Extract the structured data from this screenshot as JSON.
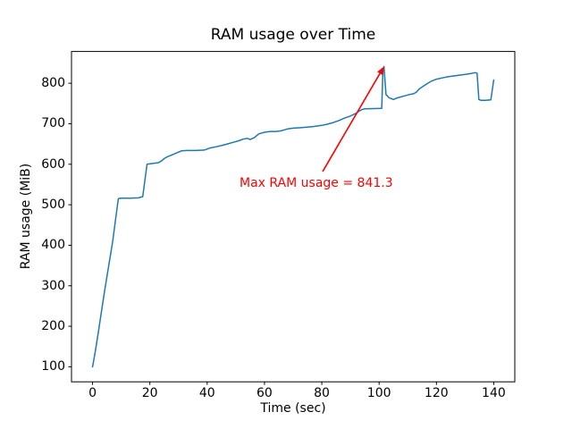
{
  "chart_data": {
    "type": "line",
    "title": "RAM usage over Time",
    "xlabel": "Time (sec)",
    "ylabel": "RAM usage (MiB)",
    "xlim": [
      -7.35,
      147.35
    ],
    "ylim": [
      62.9,
      878.4
    ],
    "xticks": [
      0,
      20,
      40,
      60,
      80,
      100,
      120,
      140
    ],
    "yticks": [
      100,
      200,
      300,
      400,
      500,
      600,
      700,
      800
    ],
    "grid": false,
    "legend": null,
    "colors": {
      "line": "#1f77b4",
      "annotation": "#ff0000",
      "text": "#000000",
      "background": "#ffffff",
      "spine": "#000000"
    },
    "series": [
      {
        "name": "RAM usage",
        "color": "#1f77b4",
        "max_value": 841.3,
        "points": [
          [
            0,
            100
          ],
          [
            1,
            140
          ],
          [
            2,
            185
          ],
          [
            3,
            232
          ],
          [
            4,
            278
          ],
          [
            5,
            322
          ],
          [
            6,
            365
          ],
          [
            7,
            408
          ],
          [
            8,
            462
          ],
          [
            9,
            515
          ],
          [
            10,
            516
          ],
          [
            13,
            516
          ],
          [
            16,
            517
          ],
          [
            17.5,
            520
          ],
          [
            19,
            600
          ],
          [
            21,
            602
          ],
          [
            23,
            604
          ],
          [
            24,
            608
          ],
          [
            25,
            614
          ],
          [
            26,
            618
          ],
          [
            28,
            624
          ],
          [
            30,
            630
          ],
          [
            31,
            633
          ],
          [
            33,
            634
          ],
          [
            36,
            634
          ],
          [
            39,
            635
          ],
          [
            41,
            640
          ],
          [
            43,
            643
          ],
          [
            45,
            646
          ],
          [
            47,
            650
          ],
          [
            49,
            654
          ],
          [
            51,
            658
          ],
          [
            52.5,
            662
          ],
          [
            54,
            664
          ],
          [
            55,
            661
          ],
          [
            56.5,
            666
          ],
          [
            58,
            675
          ],
          [
            60,
            679
          ],
          [
            62,
            681
          ],
          [
            64,
            681
          ],
          [
            66,
            683
          ],
          [
            68,
            687
          ],
          [
            70,
            689
          ],
          [
            72,
            690
          ],
          [
            74,
            691
          ],
          [
            77,
            693
          ],
          [
            80,
            696
          ],
          [
            82,
            699
          ],
          [
            84,
            703
          ],
          [
            86,
            708
          ],
          [
            88,
            714
          ],
          [
            90,
            719
          ],
          [
            92,
            726
          ],
          [
            93,
            731
          ],
          [
            94,
            735
          ],
          [
            95,
            737
          ],
          [
            100.9,
            738
          ],
          [
            101.3,
            829
          ],
          [
            101.7,
            841.3
          ],
          [
            102.4,
            772
          ],
          [
            103.5,
            764
          ],
          [
            105,
            760
          ],
          [
            106,
            763
          ],
          [
            107.5,
            766
          ],
          [
            109,
            769
          ],
          [
            110.5,
            772
          ],
          [
            112,
            774
          ],
          [
            113,
            778
          ],
          [
            114,
            786
          ],
          [
            115.5,
            793
          ],
          [
            117,
            800
          ],
          [
            118.5,
            806
          ],
          [
            120,
            810
          ],
          [
            122,
            813
          ],
          [
            124,
            816
          ],
          [
            126,
            818
          ],
          [
            128,
            820
          ],
          [
            130,
            822
          ],
          [
            132,
            824
          ],
          [
            133.5,
            826
          ],
          [
            134.2,
            825
          ],
          [
            134.8,
            760
          ],
          [
            135.5,
            758
          ],
          [
            137,
            758
          ],
          [
            139,
            759
          ],
          [
            140,
            808
          ]
        ]
      }
    ],
    "annotation": {
      "text": "Max RAM usage = 841.3",
      "color": "#ff0000",
      "arrow_tip_xy": [
        101.7,
        841.3
      ],
      "arrow_start_xy": [
        80.3,
        582
      ],
      "text_xy": [
        51.3,
        553
      ]
    }
  }
}
